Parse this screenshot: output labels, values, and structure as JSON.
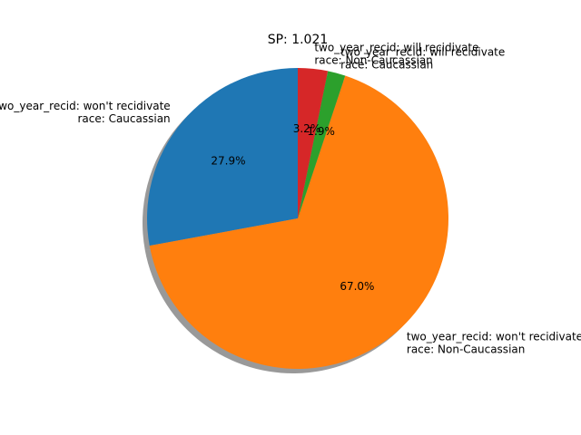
{
  "chart_data": {
    "type": "pie",
    "title": "SP: 1.021",
    "start_angle_deg": 90,
    "shadow": true,
    "slices": [
      {
        "label_lines": [
          "two_year_recid: won't recidivate",
          "race: Caucassian"
        ],
        "pct_label": "27.9%",
        "value": 27.9,
        "color": "#1f77b4"
      },
      {
        "label_lines": [
          "two_year_recid: won't recidivate",
          "race: Non-Caucassian"
        ],
        "pct_label": "67.0%",
        "value": 67.0,
        "color": "#ff7f0e"
      },
      {
        "label_lines": [
          "two_year_recid: will recidivate",
          "race: Caucassian"
        ],
        "pct_label": "1.9%",
        "value": 1.9,
        "color": "#2ca02c"
      },
      {
        "label_lines": [
          "two_year_recid: will recidivate",
          "race: Non-Caucassian"
        ],
        "pct_label": "3.2%",
        "value": 3.2,
        "color": "#d62728"
      }
    ]
  }
}
